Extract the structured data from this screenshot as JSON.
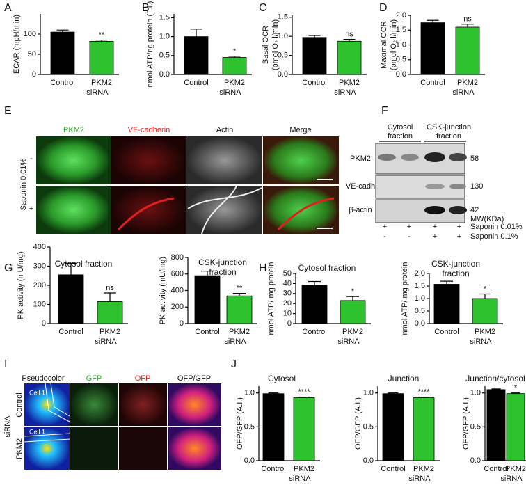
{
  "panel_labels": [
    "A",
    "B",
    "C",
    "D",
    "E",
    "F",
    "G",
    "H",
    "I",
    "J"
  ],
  "panel_e": {
    "columns": [
      "PKM2",
      "VE-cadherin",
      "Actin",
      "Merge"
    ],
    "row_title": "Saponin 0.01%",
    "rows": [
      "-",
      "+"
    ]
  },
  "panel_f": {
    "groups": [
      [
        "Cytosol",
        "fraction"
      ],
      [
        "CSK-junction",
        "fraction"
      ]
    ],
    "bands": [
      "PKM2",
      "VE-cadh",
      "β-actin"
    ],
    "mw": [
      58,
      130,
      42
    ],
    "mw_unit": "MW(KDa)",
    "treatments": [
      {
        "name": "Saponin 0.01%",
        "lanes": [
          "+",
          "+",
          "+",
          "+"
        ]
      },
      {
        "name": "Saponin 0.1%",
        "lanes": [
          "-",
          "-",
          "+",
          "+"
        ]
      }
    ]
  },
  "panel_i": {
    "columns": [
      "Pseudocolor",
      "GFP",
      "OFP",
      "OFP/GFP"
    ],
    "rows": [
      "Control",
      "PKM2"
    ],
    "row_group": "siRNA",
    "cell_label": "Cell 1"
  },
  "chart_data": [
    {
      "type": "bar",
      "ylabel": "ECAR (mpH/min)",
      "xlabel": "siRNA",
      "categories": [
        "Control",
        "PKM2"
      ],
      "values": [
        105,
        82
      ],
      "errors": [
        5,
        3
      ],
      "colors": [
        "#000000",
        "#2fc22f"
      ],
      "ylim": [
        0,
        150
      ],
      "yticks": [
        0,
        50,
        100
      ],
      "annotation": "**"
    },
    {
      "type": "bar",
      "ylabel": "nmol ATP/ng protein (F.I.)",
      "xlabel": "siRNA",
      "categories": [
        "Control",
        "PKM2"
      ],
      "values": [
        1.0,
        0.45
      ],
      "errors": [
        0.2,
        0.03
      ],
      "colors": [
        "#000000",
        "#2fc22f"
      ],
      "ylim": [
        0,
        1.6
      ],
      "yticks": [
        {
          "value": 0,
          "label": "0.0"
        },
        0.5,
        {
          "value": 1,
          "label": "1.0"
        },
        1.5
      ],
      "annotation": "*"
    },
    {
      "type": "bar",
      "ylabel": [
        "Basal OCR",
        "(pmol O₂ l/min)"
      ],
      "xlabel": "siRNA",
      "categories": [
        "Control",
        "PKM2"
      ],
      "values": [
        0.97,
        0.87
      ],
      "errors": [
        0.05,
        0.05
      ],
      "colors": [
        "#000000",
        "#2fc22f"
      ],
      "ylim": [
        0,
        1.55
      ],
      "yticks": [
        {
          "value": 0,
          "label": "0.0"
        },
        0.5,
        {
          "value": 1,
          "label": "1.0"
        },
        1.5
      ],
      "annotation": "ns"
    },
    {
      "type": "bar",
      "ylabel": [
        "Maximal OCR",
        "(pmol O₂ l/min)"
      ],
      "xlabel": "siRNA",
      "categories": [
        "Control",
        "PKM2"
      ],
      "values": [
        1.75,
        1.6
      ],
      "errors": [
        0.08,
        0.1
      ],
      "colors": [
        "#000000",
        "#2fc22f"
      ],
      "ylim": [
        0,
        2.0
      ],
      "yticks": [
        {
          "value": 0,
          "label": "0.0"
        },
        0.5,
        {
          "value": 1,
          "label": "1.0"
        },
        1.5,
        {
          "value": 2,
          "label": "2.0"
        }
      ],
      "annotation": "ns"
    },
    {
      "type": "bar",
      "title": "Cytosol fraction",
      "ylabel": "PK activity (mU/mg)",
      "xlabel": "siRNA",
      "categories": [
        "Control",
        "PKM2"
      ],
      "values": [
        255,
        115
      ],
      "errors": [
        60,
        45
      ],
      "colors": [
        "#000000",
        "#2fc22f"
      ],
      "ylim": [
        0,
        400
      ],
      "yticks": [
        0,
        100,
        200,
        300,
        400
      ],
      "annotation": "ns"
    },
    {
      "type": "bar",
      "title": [
        "CSK-junction",
        "fraction"
      ],
      "ylabel": "PK activity (mU/mg)",
      "xlabel": "siRNA",
      "categories": [
        "Control",
        "PKM2"
      ],
      "values": [
        580,
        335
      ],
      "errors": [
        55,
        30
      ],
      "colors": [
        "#000000",
        "#2fc22f"
      ],
      "ylim": [
        0,
        800
      ],
      "yticks": [
        0,
        200,
        400,
        600,
        800
      ],
      "annotation": "**"
    },
    {
      "type": "bar",
      "title": "Cytosol fraction",
      "ylabel": "nmol ATP/ mg protein",
      "xlabel": "siRNA",
      "categories": [
        "Control",
        "PKM2"
      ],
      "values": [
        38,
        23
      ],
      "errors": [
        4,
        4
      ],
      "colors": [
        "#000000",
        "#2fc22f"
      ],
      "ylim": [
        0,
        50
      ],
      "yticks": [
        0,
        10,
        20,
        30,
        40,
        50
      ],
      "annotation": "*"
    },
    {
      "type": "bar",
      "title": [
        "CSK-junction",
        "fraction"
      ],
      "ylabel": "nmol ATP/ mg protein",
      "xlabel": "siRNA",
      "categories": [
        "Control",
        "PKM2"
      ],
      "values": [
        1.57,
        1.0
      ],
      "errors": [
        0.12,
        0.18
      ],
      "colors": [
        "#000000",
        "#2fc22f"
      ],
      "ylim": [
        0,
        2.0
      ],
      "yticks": [
        {
          "value": 0,
          "label": "0.0"
        },
        0.5,
        {
          "value": 1,
          "label": "1.0"
        },
        1.5,
        {
          "value": 2,
          "label": "2.0"
        }
      ],
      "annotation": "*"
    },
    {
      "type": "bar",
      "title": "Cytosol",
      "ylabel": "OFP/GFP (A.I.)",
      "xlabel": "siRNA",
      "categories": [
        "Control",
        "PKM2"
      ],
      "values": [
        0.99,
        0.93
      ],
      "errors": [
        0.01,
        0.01
      ],
      "colors": [
        "#000000",
        "#2fc22f"
      ],
      "ylim": [
        0,
        1.1
      ],
      "yticks": [
        {
          "value": 0,
          "label": "0.0"
        },
        0.5,
        {
          "value": 1,
          "label": "1.0"
        }
      ],
      "annotation": "****"
    },
    {
      "type": "bar",
      "title": "Junction",
      "ylabel": "OFP/GFP (A.I.)",
      "xlabel": "siRNA",
      "categories": [
        "Control",
        "PKM2"
      ],
      "values": [
        0.99,
        0.93
      ],
      "errors": [
        0.01,
        0.01
      ],
      "colors": [
        "#000000",
        "#2fc22f"
      ],
      "ylim": [
        0,
        1.1
      ],
      "yticks": [
        {
          "value": 0,
          "label": "0.0"
        },
        0.5,
        {
          "value": 1,
          "label": "1.0"
        }
      ],
      "annotation": "****"
    },
    {
      "type": "bar",
      "title": "Junction/cytosol",
      "ylabel": "OFP/GFP (A.I.)",
      "xlabel": "siRNA",
      "categories": [
        "Control",
        "PKM2"
      ],
      "values": [
        1.05,
        0.99
      ],
      "errors": [
        0.01,
        0.01
      ],
      "colors": [
        "#000000",
        "#2fc22f"
      ],
      "ylim": [
        0,
        1.1
      ],
      "yticks": [
        {
          "value": 0,
          "label": "0.0"
        },
        0.5,
        {
          "value": 1,
          "label": "1.0"
        }
      ],
      "annotation": "*"
    }
  ]
}
